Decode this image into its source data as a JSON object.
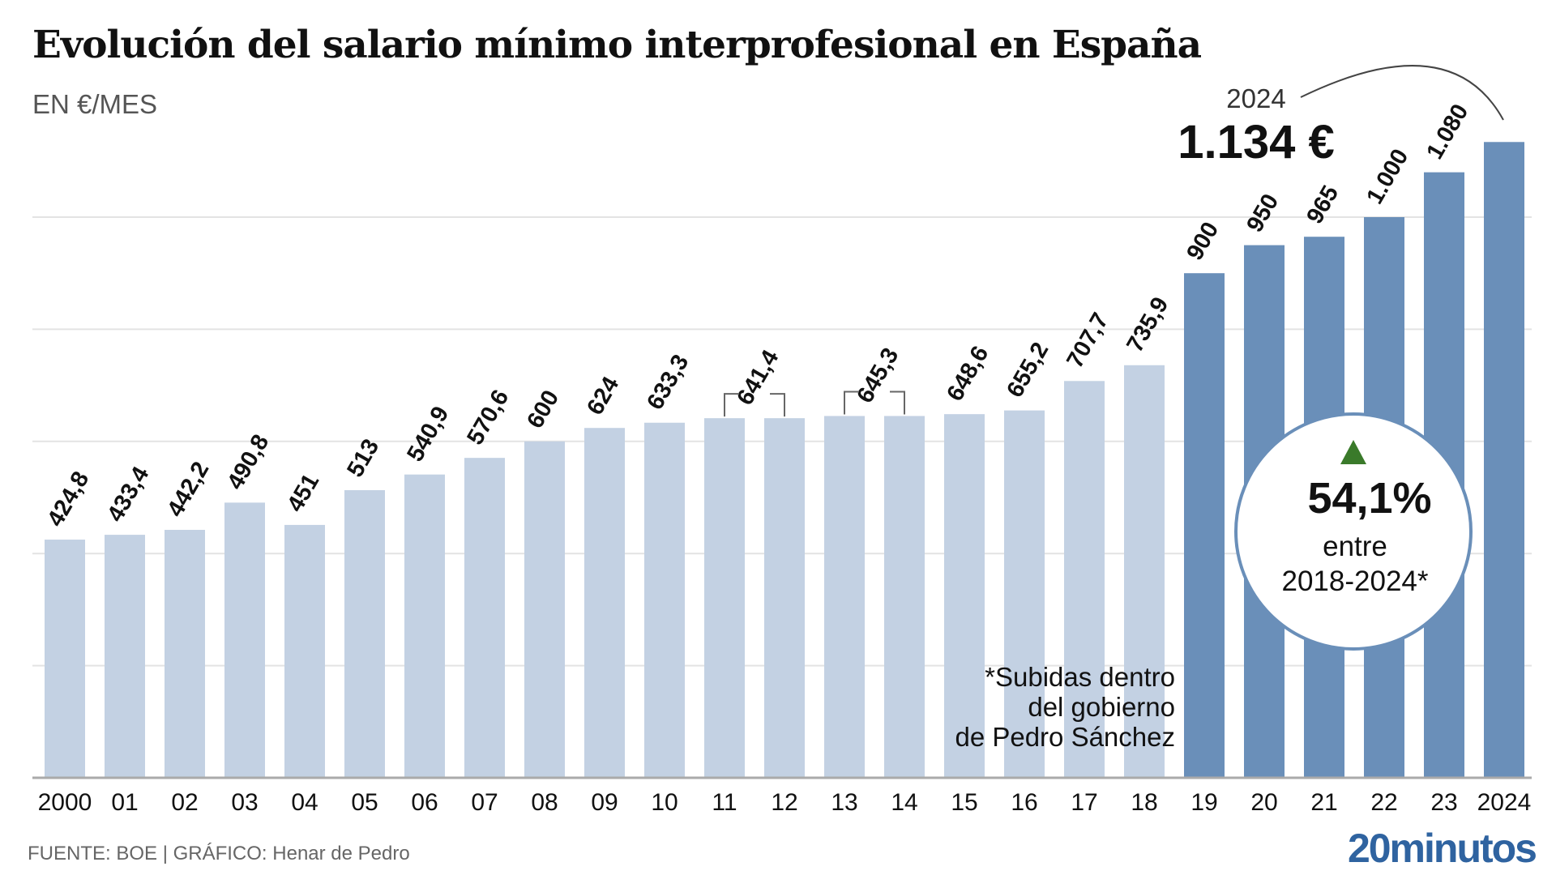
{
  "title": "Evolución del salario mínimo interprofesional en España",
  "subtitle": "EN €/MES",
  "source": "FUENTE: BOE  |  GRÁFICO: Henar de Pedro",
  "logo": "20minutos",
  "highlight": {
    "year": "2024",
    "value": "1.134 €"
  },
  "badge": {
    "value": "54,1%",
    "line1": "entre",
    "line2": "2018-2024*",
    "arrow_color": "#3a7a2a"
  },
  "note": [
    "*Subidas dentro",
    "del gobierno",
    "de Pedro Sánchez"
  ],
  "colors": {
    "before": "#c3d1e3",
    "sanchez": "#6a8fb9",
    "logo": "#2f63a0"
  },
  "chart_data": {
    "type": "bar",
    "title": "Evolución del salario mínimo interprofesional en España",
    "ylabel": "EN €/MES",
    "ylim": [
      0,
      1200
    ],
    "grid": true,
    "categories": [
      "2000",
      "01",
      "02",
      "03",
      "04",
      "05",
      "06",
      "07",
      "08",
      "09",
      "10",
      "11",
      "12",
      "13",
      "14",
      "15",
      "16",
      "17",
      "18",
      "19",
      "20",
      "21",
      "22",
      "23",
      "2024"
    ],
    "values": [
      424.8,
      433.4,
      442.2,
      490.8,
      451,
      513,
      540.9,
      570.6,
      600,
      624,
      633.3,
      641.4,
      641.4,
      645.3,
      645.3,
      648.6,
      655.2,
      707.7,
      735.9,
      900,
      950,
      965,
      1000,
      1080,
      1134
    ],
    "value_labels": [
      "424,8",
      "433,4",
      "442,2",
      "490,8",
      "451",
      "513",
      "540,9",
      "570,6",
      "600",
      "624",
      "633,3",
      "641,4",
      "",
      "645,3",
      "",
      "648,6",
      "655,2",
      "707,7",
      "735,9",
      "900",
      "950",
      "965",
      "1.000",
      "1.080",
      ""
    ],
    "highlighted_from": "19"
  }
}
